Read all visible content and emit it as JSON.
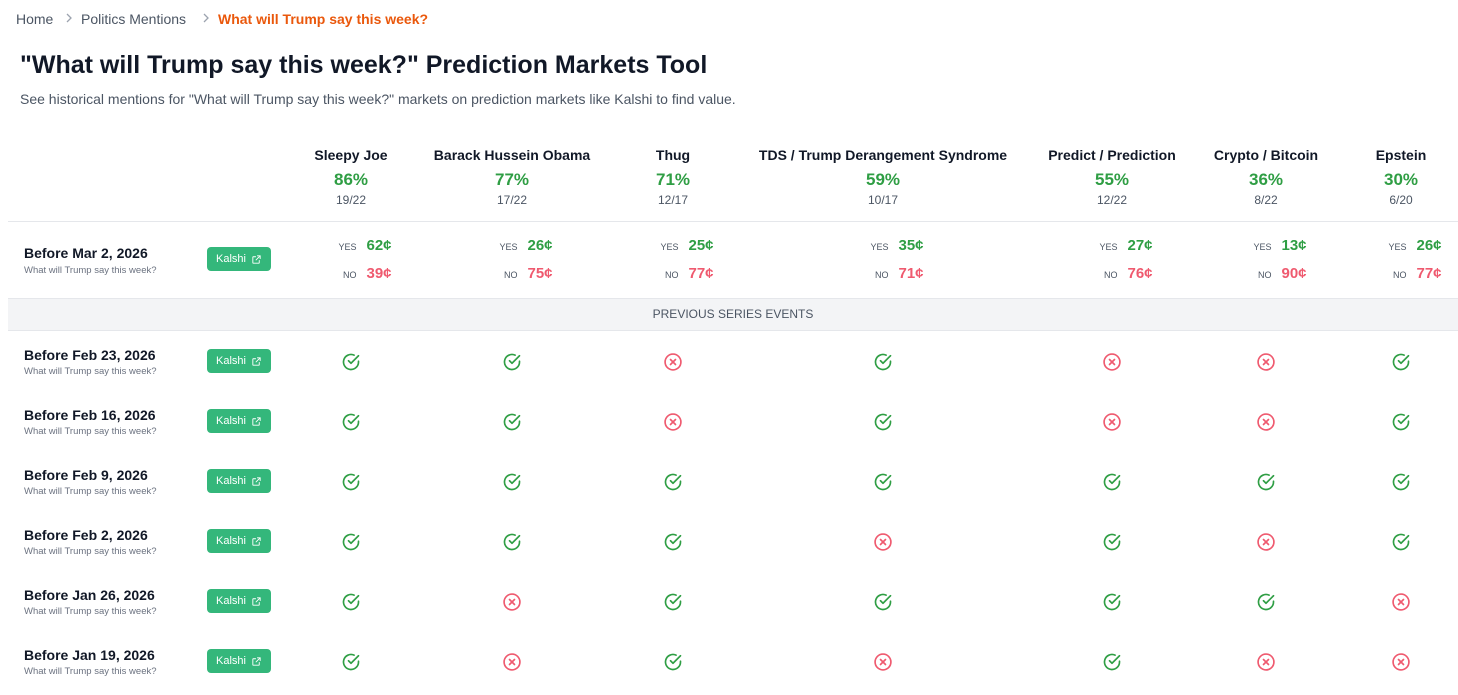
{
  "breadcrumb": [
    "Home",
    "Politics Mentions",
    "What will Trump say this week?"
  ],
  "title": "\"What will Trump say this week?\" Prediction Markets Tool",
  "subtitle": "See historical mentions for \"What will Trump say this week?\" markets on prediction markets like Kalshi to find value.",
  "button_label": "Kalshi",
  "yes_label": "YES",
  "no_label": "NO",
  "columns": [
    {
      "name": "Sleepy Joe",
      "rate": "86%",
      "count": "19/22"
    },
    {
      "name": "Barack Hussein Obama",
      "rate": "77%",
      "count": "17/22"
    },
    {
      "name": "Thug",
      "rate": "71%",
      "count": "12/17"
    },
    {
      "name": "TDS / Trump Derangement Syndrome",
      "rate": "59%",
      "count": "10/17"
    },
    {
      "name": "Predict / Prediction",
      "rate": "55%",
      "count": "12/22"
    },
    {
      "name": "Crypto / Bitcoin",
      "rate": "36%",
      "count": "8/22"
    },
    {
      "name": "Epstein",
      "rate": "30%",
      "count": "6/20"
    }
  ],
  "current": {
    "label": "Before Mar 2, 2026",
    "sub": "What will Trump say this week?",
    "prices": [
      {
        "yes": "62¢",
        "no": "39¢"
      },
      {
        "yes": "26¢",
        "no": "75¢"
      },
      {
        "yes": "25¢",
        "no": "77¢"
      },
      {
        "yes": "35¢",
        "no": "71¢"
      },
      {
        "yes": "27¢",
        "no": "76¢"
      },
      {
        "yes": "13¢",
        "no": "90¢"
      },
      {
        "yes": "26¢",
        "no": "77¢"
      }
    ]
  },
  "section_label": "PREVIOUS SERIES EVENTS",
  "past": [
    {
      "label": "Before Feb 23, 2026",
      "sub": "What will Trump say this week?",
      "results": [
        true,
        true,
        false,
        true,
        false,
        false,
        true
      ]
    },
    {
      "label": "Before Feb 16, 2026",
      "sub": "What will Trump say this week?",
      "results": [
        true,
        true,
        false,
        true,
        false,
        false,
        true
      ]
    },
    {
      "label": "Before Feb 9, 2026",
      "sub": "What will Trump say this week?",
      "results": [
        true,
        true,
        true,
        true,
        true,
        true,
        true
      ]
    },
    {
      "label": "Before Feb 2, 2026",
      "sub": "What will Trump say this week?",
      "results": [
        true,
        true,
        true,
        false,
        true,
        false,
        true
      ]
    },
    {
      "label": "Before Jan 26, 2026",
      "sub": "What will Trump say this week?",
      "results": [
        true,
        false,
        true,
        true,
        true,
        true,
        false
      ]
    },
    {
      "label": "Before Jan 19, 2026",
      "sub": "What will Trump say this week?",
      "results": [
        true,
        false,
        true,
        false,
        true,
        false,
        false
      ]
    }
  ]
}
